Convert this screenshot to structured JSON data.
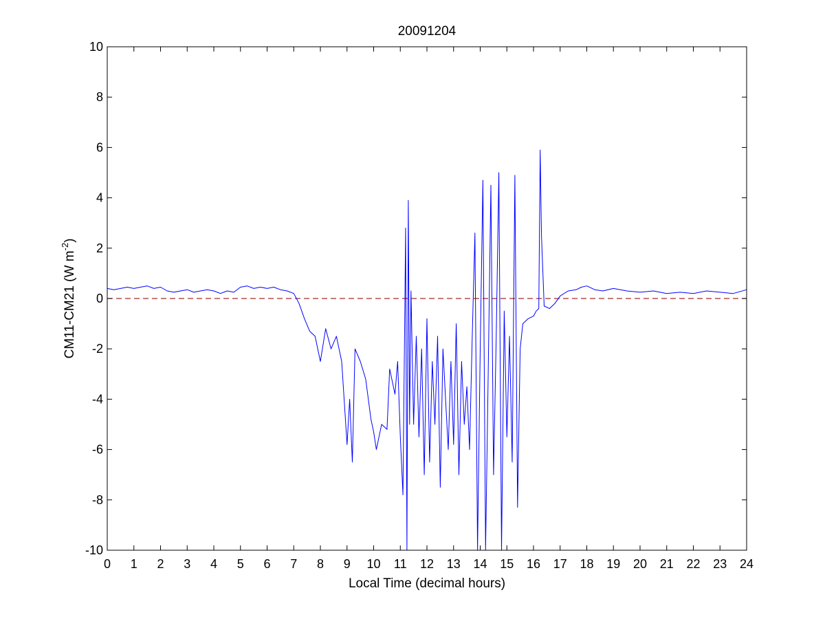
{
  "chart_data": {
    "type": "line",
    "title": "20091204",
    "xlabel": "Local Time (decimal hours)",
    "ylabel": {
      "main": "CM11-CM21 (W m",
      "superscript": "-2",
      "end": ")"
    },
    "xlim": [
      0,
      24
    ],
    "ylim": [
      -10,
      10
    ],
    "xticks": [
      0,
      1,
      2,
      3,
      4,
      5,
      6,
      7,
      8,
      9,
      10,
      11,
      12,
      13,
      14,
      15,
      16,
      17,
      18,
      19,
      20,
      21,
      22,
      23,
      24
    ],
    "yticks": [
      -10,
      -8,
      -6,
      -4,
      -2,
      0,
      2,
      4,
      6,
      8,
      10
    ],
    "grid": false,
    "reference_line": {
      "y": 0,
      "color": "#a52a2a",
      "style": "dashed"
    },
    "series": [
      {
        "color": "#0000ff",
        "x": [
          0,
          0.25,
          0.5,
          0.75,
          1,
          1.25,
          1.5,
          1.75,
          2,
          2.25,
          2.5,
          2.75,
          3,
          3.25,
          3.5,
          3.75,
          4,
          4.25,
          4.5,
          4.75,
          5,
          5.25,
          5.5,
          5.75,
          6,
          6.25,
          6.5,
          6.75,
          7,
          7.2,
          7.4,
          7.6,
          7.8,
          8,
          8.2,
          8.4,
          8.6,
          8.8,
          9,
          9.1,
          9.2,
          9.3,
          9.5,
          9.7,
          9.9,
          10,
          10.1,
          10.3,
          10.5,
          10.6,
          10.8,
          10.9,
          11,
          11.1,
          11.2,
          11.25,
          11.3,
          11.35,
          11.4,
          11.5,
          11.6,
          11.7,
          11.8,
          11.9,
          12,
          12.1,
          12.2,
          12.3,
          12.4,
          12.5,
          12.6,
          12.7,
          12.8,
          12.9,
          13,
          13.1,
          13.2,
          13.3,
          13.4,
          13.5,
          13.6,
          13.7,
          13.8,
          13.9,
          14,
          14.1,
          14.2,
          14.3,
          14.4,
          14.5,
          14.6,
          14.7,
          14.8,
          14.9,
          15,
          15.1,
          15.2,
          15.3,
          15.4,
          15.5,
          15.6,
          15.8,
          16,
          16.1,
          16.2,
          16.25,
          16.3,
          16.4,
          16.6,
          16.8,
          17,
          17.3,
          17.6,
          17.8,
          18,
          18.3,
          18.6,
          19,
          19.5,
          20,
          20.5,
          21,
          21.5,
          22,
          22.5,
          23,
          23.5,
          24
        ],
        "y": [
          0.4,
          0.35,
          0.4,
          0.45,
          0.4,
          0.45,
          0.5,
          0.4,
          0.45,
          0.3,
          0.25,
          0.3,
          0.35,
          0.25,
          0.3,
          0.35,
          0.3,
          0.2,
          0.3,
          0.25,
          0.45,
          0.5,
          0.4,
          0.45,
          0.4,
          0.45,
          0.35,
          0.3,
          0.2,
          -0.2,
          -0.8,
          -1.3,
          -1.5,
          -2.5,
          -1.2,
          -2.0,
          -1.5,
          -2.5,
          -5.8,
          -4.0,
          -6.5,
          -2.0,
          -2.5,
          -3.2,
          -4.8,
          -5.3,
          -6.0,
          -5.0,
          -5.2,
          -2.8,
          -3.8,
          -2.5,
          -5.5,
          -7.8,
          2.8,
          -10,
          3.9,
          -5.0,
          0.3,
          -5.0,
          -1.5,
          -5.5,
          -2.0,
          -7.0,
          -0.8,
          -6.5,
          -2.5,
          -5.0,
          -1.5,
          -7.5,
          -2.0,
          -4.0,
          -6.0,
          -2.5,
          -5.8,
          -1.0,
          -7.0,
          -2.5,
          -5.0,
          -3.5,
          -6.0,
          -1.5,
          2.6,
          -10,
          -2.0,
          4.7,
          -10,
          -3.0,
          4.5,
          -7.0,
          -1.5,
          5.0,
          -10,
          -0.5,
          -5.5,
          -1.5,
          -6.5,
          4.9,
          -8.3,
          -2.0,
          -1.0,
          -0.8,
          -0.7,
          -0.5,
          -0.4,
          5.9,
          2.5,
          -0.3,
          -0.4,
          -0.2,
          0.1,
          0.3,
          0.35,
          0.45,
          0.5,
          0.35,
          0.3,
          0.4,
          0.3,
          0.25,
          0.3,
          0.2,
          0.25,
          0.2,
          0.3,
          0.25,
          0.2,
          0.35
        ]
      }
    ]
  }
}
